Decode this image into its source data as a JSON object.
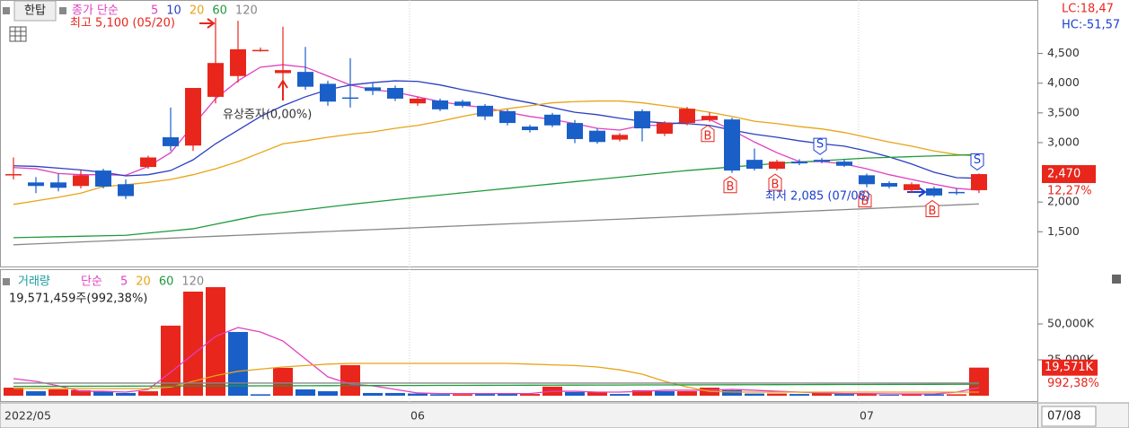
{
  "chart_data": [
    {
      "type": "candlestick",
      "name": "한탑",
      "legend_prefix": "종가 단순",
      "categories": [
        "2022/05",
        null,
        null,
        null,
        null,
        null,
        null,
        null,
        null,
        null,
        null,
        null,
        null,
        null,
        null,
        null,
        null,
        null,
        "06",
        null,
        null,
        null,
        null,
        null,
        null,
        null,
        null,
        null,
        null,
        null,
        null,
        null,
        null,
        null,
        null,
        null,
        null,
        null,
        "07",
        null,
        null,
        null,
        null,
        null
      ],
      "open": [
        2450,
        2330,
        2330,
        2270,
        2530,
        2300,
        2590,
        3090,
        2950,
        3770,
        4120,
        4550,
        4170,
        4190,
        3990,
        3760,
        3930,
        3920,
        3660,
        3710,
        3690,
        3620,
        3530,
        3270,
        3470,
        3330,
        3200,
        3050,
        3530,
        3150,
        3330,
        3380,
        3390,
        2710,
        2560,
        2680,
        2710,
        2680,
        2450,
        2320,
        2200,
        2230,
        2170,
        2200
      ],
      "high": [
        2750,
        2420,
        2480,
        2530,
        2560,
        2380,
        2780,
        3590,
        3920,
        5100,
        5050,
        4600,
        4950,
        4610,
        4040,
        4420,
        4020,
        3960,
        3770,
        3740,
        3720,
        3650,
        3560,
        3300,
        3500,
        3380,
        3240,
        3160,
        3560,
        3360,
        3600,
        3510,
        3420,
        2900,
        2710,
        2720,
        2740,
        2720,
        2480,
        2350,
        2330,
        2260,
        2230,
        2480
      ],
      "low": [
        2380,
        2150,
        2180,
        2230,
        2230,
        2050,
        2560,
        2860,
        2860,
        3660,
        4010,
        4530,
        3970,
        3890,
        3620,
        3590,
        3800,
        3700,
        3620,
        3530,
        3590,
        3380,
        3290,
        3170,
        3260,
        2990,
        2980,
        3020,
        3020,
        3110,
        3290,
        3350,
        2490,
        2530,
        2530,
        2620,
        2650,
        2590,
        2250,
        2230,
        2150,
        2085,
        2120,
        2150
      ],
      "close": [
        2470,
        2270,
        2240,
        2450,
        2260,
        2100,
        2750,
        2940,
        3920,
        4340,
        4570,
        4560,
        4220,
        3940,
        3690,
        3740,
        3870,
        3740,
        3740,
        3560,
        3620,
        3440,
        3330,
        3210,
        3290,
        3060,
        3010,
        3130,
        3240,
        3330,
        3570,
        3450,
        2530,
        2560,
        2680,
        2650,
        2680,
        2610,
        2300,
        2260,
        2300,
        2110,
        2160,
        2470
      ],
      "up_color": "#e8261c",
      "down_color": "#1a5fc8",
      "series": [
        {
          "name": "5",
          "color": "#e040c0",
          "values": [
            2580,
            2560,
            2480,
            2460,
            2460,
            2450,
            2600,
            2830,
            3290,
            3740,
            4040,
            4270,
            4310,
            4270,
            4120,
            3970,
            3890,
            3850,
            3770,
            3690,
            3630,
            3590,
            3510,
            3440,
            3390,
            3320,
            3240,
            3210,
            3290,
            3290,
            3360,
            3390,
            3210,
            3010,
            2830,
            2680,
            2680,
            2640,
            2560,
            2460,
            2380,
            2300,
            2230,
            2200
          ]
        },
        {
          "name": "10",
          "color": "#2a3fc0",
          "values": [
            2610,
            2600,
            2570,
            2540,
            2500,
            2440,
            2460,
            2530,
            2710,
            2980,
            3210,
            3440,
            3620,
            3770,
            3890,
            3970,
            4010,
            4040,
            4030,
            3970,
            3890,
            3820,
            3740,
            3670,
            3590,
            3510,
            3470,
            3410,
            3360,
            3330,
            3320,
            3290,
            3210,
            3140,
            3090,
            3030,
            2980,
            2940,
            2860,
            2760,
            2640,
            2500,
            2410,
            2400
          ]
        },
        {
          "name": "20",
          "color": "#e8a317",
          "values": [
            1960,
            2020,
            2080,
            2150,
            2260,
            2290,
            2330,
            2380,
            2460,
            2560,
            2680,
            2830,
            2980,
            3030,
            3090,
            3140,
            3180,
            3240,
            3290,
            3360,
            3440,
            3510,
            3570,
            3620,
            3670,
            3690,
            3700,
            3700,
            3670,
            3620,
            3570,
            3510,
            3440,
            3360,
            3320,
            3270,
            3230,
            3170,
            3090,
            3010,
            2940,
            2860,
            2800,
            2770
          ]
        },
        {
          "name": "60",
          "color": "#1e9a3a",
          "values": [
            1400,
            1408,
            1416,
            1424,
            1432,
            1440,
            1477,
            1513,
            1550,
            1627,
            1703,
            1780,
            1825,
            1870,
            1915,
            1960,
            2000,
            2040,
            2080,
            2118,
            2155,
            2193,
            2230,
            2268,
            2305,
            2343,
            2380,
            2418,
            2455,
            2493,
            2530,
            2560,
            2590,
            2620,
            2650,
            2673,
            2695,
            2718,
            2740,
            2752,
            2764,
            2776,
            2788,
            2800
          ]
        },
        {
          "name": "120",
          "color": "#888888",
          "values": [
            1280,
            1296,
            1312,
            1328,
            1344,
            1360,
            1376,
            1392,
            1408,
            1424,
            1440,
            1456,
            1472,
            1488,
            1504,
            1520,
            1536,
            1552,
            1568,
            1584,
            1600,
            1616,
            1632,
            1648,
            1664,
            1680,
            1696,
            1712,
            1728,
            1744,
            1760,
            1776,
            1792,
            1808,
            1824,
            1840,
            1856,
            1872,
            1888,
            1904,
            1920,
            1936,
            1952,
            1968
          ]
        }
      ],
      "ylim": [
        900,
        5400
      ],
      "yticks": [
        {
          "value": 1500,
          "label": "1,500"
        },
        {
          "value": 2000,
          "label": "2,000"
        },
        {
          "value": 3000,
          "label": "3,000"
        },
        {
          "value": 3500,
          "label": "3,500"
        },
        {
          "value": 4000,
          "label": "4,000"
        },
        {
          "value": 4500,
          "label": "4,500"
        }
      ],
      "end_date_label": "07/08",
      "current_label": "2,470",
      "change_label": "12,27%",
      "lc_label": "LC:18,47",
      "hc_label": "HC:-51,57",
      "annotations": [
        "최고 5,100 (05/20)",
        "유상증자(0,00%)",
        "최저 2,085 (07/08)"
      ],
      "signals": [
        {
          "index": 31,
          "label": "B"
        },
        {
          "index": 32,
          "label": "B"
        },
        {
          "index": 34,
          "label": "B"
        },
        {
          "index": 36,
          "label": "S"
        },
        {
          "index": 38,
          "label": "B"
        },
        {
          "index": 41,
          "label": "B"
        },
        {
          "index": 43,
          "label": "S"
        }
      ]
    },
    {
      "type": "bar",
      "name": "거래량",
      "legend_prefix": "단순",
      "info": "19,571,459주(992,38%)",
      "values": [
        5600,
        3100,
        4400,
        3800,
        3100,
        1900,
        3100,
        48800,
        72500,
        75600,
        44400,
        1000,
        19400,
        4400,
        3100,
        21300,
        1900,
        1900,
        1500,
        1000,
        1000,
        1200,
        1500,
        1200,
        6300,
        2500,
        2500,
        1200,
        3800,
        3100,
        3100,
        5600,
        3800,
        1500,
        1500,
        1200,
        2500,
        1200,
        1200,
        600,
        1000,
        1000,
        1000,
        19571
      ],
      "directions": [
        "up",
        "down",
        "up",
        "up",
        "down",
        "down",
        "up",
        "up",
        "up",
        "up",
        "down",
        "down",
        "up",
        "down",
        "down",
        "up",
        "down",
        "down",
        "down",
        "down",
        "up",
        "down",
        "down",
        "up",
        "up",
        "down",
        "up",
        "down",
        "up",
        "down",
        "up",
        "up",
        "down",
        "down",
        "up",
        "down",
        "up",
        "down",
        "up",
        "down",
        "up",
        "down",
        "up",
        "up"
      ],
      "up_color": "#e8261c",
      "down_color": "#1a5fc8",
      "series": [
        {
          "name": "5",
          "color": "#e040c0",
          "values": [
            11900,
            10000,
            6900,
            3100,
            3100,
            2500,
            4400,
            16300,
            28800,
            41300,
            47500,
            44400,
            38100,
            25600,
            13100,
            8100,
            6900,
            4400,
            1900,
            1500,
            1500,
            1500,
            1500,
            1500,
            3100,
            3100,
            2500,
            2500,
            3100,
            3800,
            3800,
            3800,
            4400,
            3800,
            3100,
            2500,
            1900,
            1500,
            1500,
            1200,
            1200,
            1200,
            2500,
            5600
          ]
        },
        {
          "name": "20",
          "color": "#e8a317",
          "values": [
            5000,
            5000,
            5000,
            5000,
            5000,
            5000,
            5000,
            6000,
            10000,
            14000,
            17000,
            18500,
            20000,
            21000,
            22000,
            22500,
            22500,
            22500,
            22500,
            22500,
            22500,
            22500,
            22500,
            22000,
            21500,
            21000,
            20000,
            18000,
            15000,
            10000,
            6000,
            3000,
            2600,
            2500,
            2500,
            2500,
            2500,
            2500,
            2500,
            2500,
            2500,
            2500,
            2500,
            2500
          ]
        },
        {
          "name": "60",
          "color": "#1e9a3a",
          "values": [
            6500,
            6535,
            6570,
            6605,
            6640,
            6675,
            6710,
            6745,
            6780,
            6815,
            6850,
            6885,
            6920,
            6955,
            6990,
            7025,
            7060,
            7095,
            7130,
            7165,
            7200,
            7235,
            7270,
            7305,
            7340,
            7375,
            7410,
            7445,
            7480,
            7515,
            7550,
            7585,
            7620,
            7655,
            7690,
            7725,
            7760,
            7795,
            7830,
            7865,
            7900,
            7935,
            7970,
            8005
          ]
        },
        {
          "name": "120",
          "color": "#888888",
          "values": [
            8800,
            8800,
            8800,
            8800,
            8800,
            8800,
            8800,
            8800,
            8800,
            8800,
            8800,
            8800,
            8800,
            8800,
            8800,
            8800,
            8800,
            8800,
            8800,
            8800,
            8800,
            8800,
            8800,
            8800,
            8800,
            8800,
            8800,
            8800,
            8800,
            8800,
            8800,
            8800,
            8800,
            8800,
            8800,
            8800,
            8800,
            8800,
            8800,
            8800,
            8800,
            8800,
            8800,
            8800
          ]
        }
      ],
      "ylim": [
        0,
        85000
      ],
      "yticks": [
        {
          "value": 25000,
          "label": "25,000K"
        },
        {
          "value": 50000,
          "label": "50,000K"
        }
      ],
      "current_label": "19,571K",
      "change_label": "992,38%"
    }
  ]
}
